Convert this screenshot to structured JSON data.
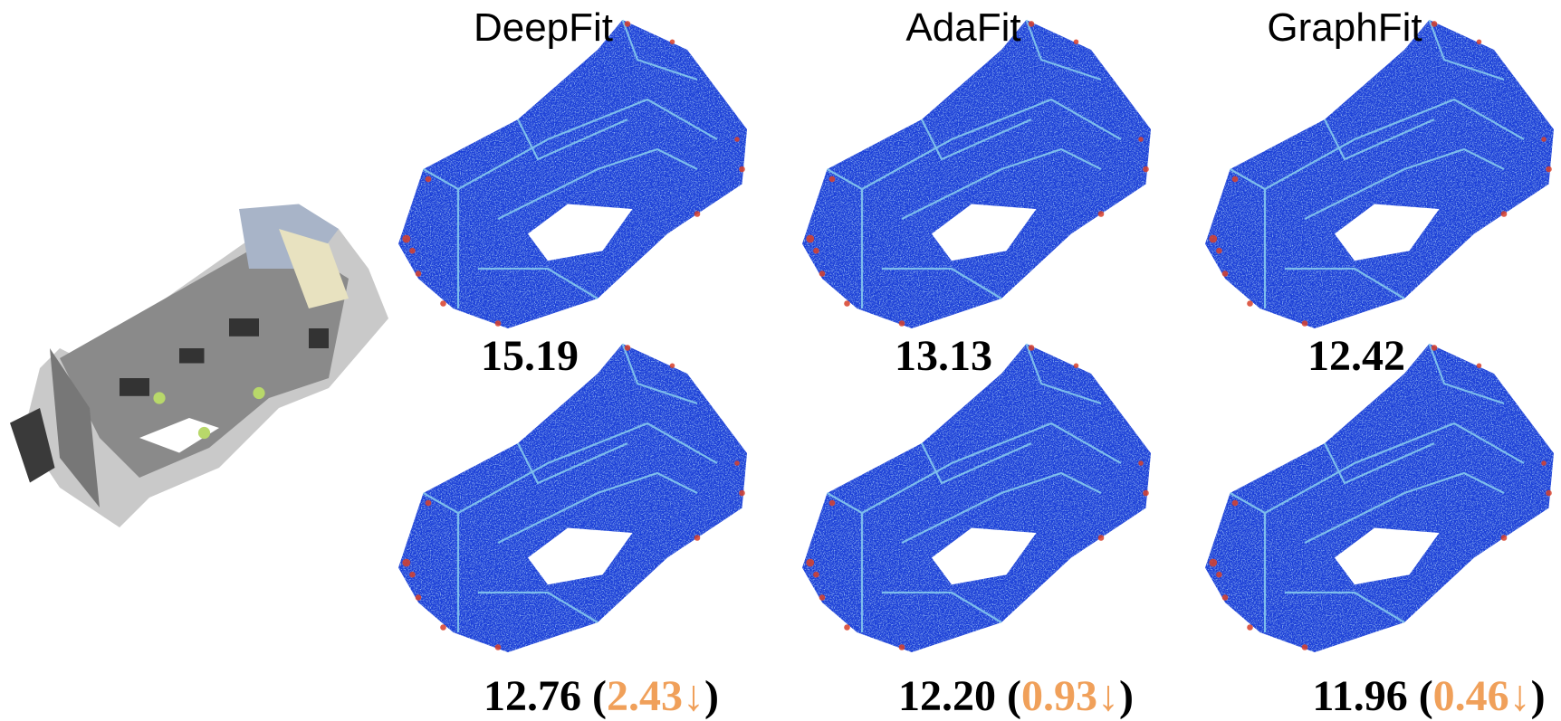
{
  "columns": [
    {
      "title": "DeepFit",
      "top": "15.19",
      "bottom": [
        "12.76 (",
        "2.43↓",
        ")"
      ]
    },
    {
      "title": "AdaFit",
      "top": "13.13",
      "bottom": [
        "12.20 (",
        "0.93↓",
        ")"
      ]
    },
    {
      "title": "GraphFit",
      "top": "12.42",
      "bottom": [
        "11.96 (",
        "0.46↓",
        ")"
      ]
    }
  ]
}
